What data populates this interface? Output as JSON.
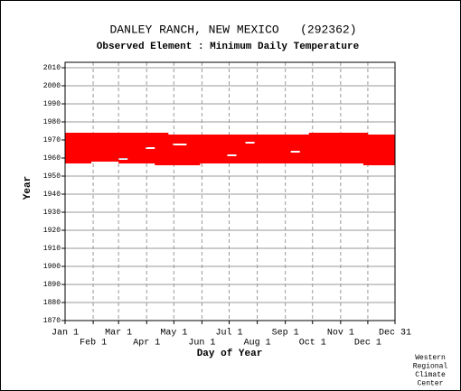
{
  "chart_data": {
    "type": "range",
    "title": "DANLEY RANCH, NEW MEXICO   (292362)",
    "subtitle": "Observed Element : Minimum Daily Temperature",
    "y_label": "Year",
    "x_label": "Day of Year",
    "credit": [
      "Western",
      "Regional",
      "Climate",
      "Center"
    ],
    "color": "#ff0000",
    "grid": true,
    "xlim": [
      1,
      365
    ],
    "ylim": [
      1870,
      2013
    ],
    "xticks": [
      {
        "value": 1,
        "label": "Jan 1"
      },
      {
        "value": 32,
        "label": "Feb 1"
      },
      {
        "value": 60,
        "label": "Mar 1"
      },
      {
        "value": 91,
        "label": "Apr 1"
      },
      {
        "value": 121,
        "label": "May 1"
      },
      {
        "value": 152,
        "label": "Jun 1"
      },
      {
        "value": 182,
        "label": "Jul 1"
      },
      {
        "value": 213,
        "label": "Aug 1"
      },
      {
        "value": 244,
        "label": "Sep 1"
      },
      {
        "value": 274,
        "label": "Oct 1"
      },
      {
        "value": 305,
        "label": "Nov 1"
      },
      {
        "value": 335,
        "label": "Dec 1"
      },
      {
        "value": 365,
        "label": "Dec 31"
      }
    ],
    "yticks": [
      1870,
      1880,
      1890,
      1900,
      1910,
      1920,
      1930,
      1940,
      1950,
      1960,
      1970,
      1980,
      1990,
      2000,
      2010
    ],
    "records": [
      {
        "year": 1973,
        "start": 1,
        "end": 115
      },
      {
        "year": 1973,
        "start": 270,
        "end": 335
      },
      {
        "year": 1972,
        "start": 1,
        "end": 365
      },
      {
        "year": 1971,
        "start": 1,
        "end": 365
      },
      {
        "year": 1970,
        "start": 1,
        "end": 365
      },
      {
        "year": 1969,
        "start": 1,
        "end": 365
      },
      {
        "year": 1968,
        "start": 1,
        "end": 200
      },
      {
        "year": 1968,
        "start": 210,
        "end": 365
      },
      {
        "year": 1967,
        "start": 1,
        "end": 120
      },
      {
        "year": 1967,
        "start": 135,
        "end": 365
      },
      {
        "year": 1966,
        "start": 1,
        "end": 365
      },
      {
        "year": 1965,
        "start": 1,
        "end": 90
      },
      {
        "year": 1965,
        "start": 100,
        "end": 365
      },
      {
        "year": 1964,
        "start": 1,
        "end": 365
      },
      {
        "year": 1963,
        "start": 1,
        "end": 250
      },
      {
        "year": 1963,
        "start": 260,
        "end": 365
      },
      {
        "year": 1962,
        "start": 1,
        "end": 365
      },
      {
        "year": 1961,
        "start": 1,
        "end": 180
      },
      {
        "year": 1961,
        "start": 190,
        "end": 365
      },
      {
        "year": 1960,
        "start": 1,
        "end": 365
      },
      {
        "year": 1959,
        "start": 1,
        "end": 60
      },
      {
        "year": 1959,
        "start": 70,
        "end": 365
      },
      {
        "year": 1958,
        "start": 1,
        "end": 365
      },
      {
        "year": 1957,
        "start": 1,
        "end": 30
      },
      {
        "year": 1957,
        "start": 60,
        "end": 365
      },
      {
        "year": 1956,
        "start": 100,
        "end": 150
      },
      {
        "year": 1956,
        "start": 330,
        "end": 365
      }
    ]
  }
}
